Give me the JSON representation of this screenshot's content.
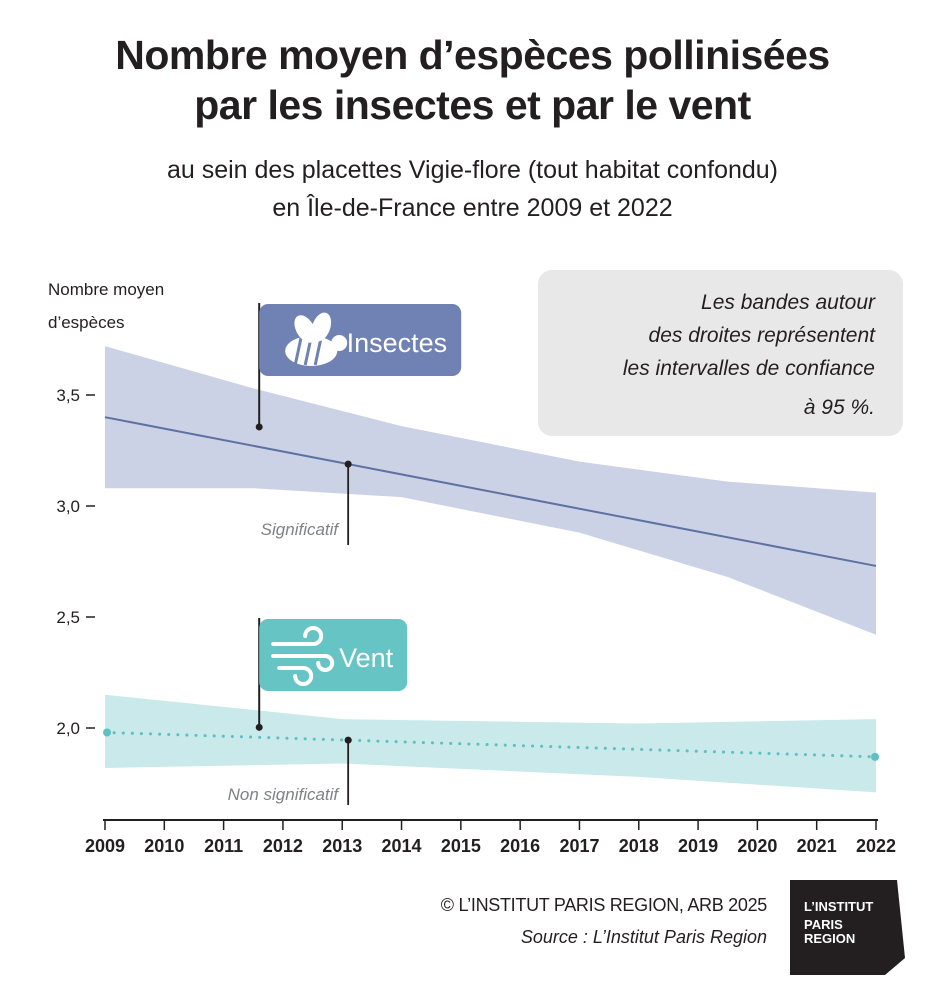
{
  "title": {
    "line1": "Nombre moyen d’espèces pollinisées",
    "line2": "par les insectes et par le vent"
  },
  "subtitle": {
    "line1": "au sein des placettes Vigie-flore (tout habitat confondu)",
    "line2": "en Île-de-France entre 2009 et 2022"
  },
  "note": {
    "line1": "Les bandes autour",
    "line2": "des droites représentent",
    "line3": "les intervalles de confiance",
    "line4": "à 95 %."
  },
  "credits": {
    "copyright": "© L’INSTITUT PARIS REGION, ARB 2025",
    "source": "Source : L’Institut Paris Region"
  },
  "logo": {
    "line1": "L’INSTITUT",
    "line2": "PARIS",
    "line3": "REGION"
  },
  "colors": {
    "insects_band": "#ccd2e5",
    "insects_line": "#5e71a3",
    "insects_flag": "#6f82b3",
    "wind_band": "#c9e9ea",
    "wind_line": "#5fc0c1",
    "wind_flag": "#66c4c5",
    "note_box": "#e8e8e9",
    "logo": "#231f20"
  },
  "chart_data": {
    "type": "line",
    "ylabel": "Nombre moyen d’espèces",
    "ylabel_lines": [
      "Nombre moyen",
      "d’espèces"
    ],
    "xlabel": "",
    "x": [
      2009,
      2010,
      2011,
      2012,
      2013,
      2014,
      2015,
      2016,
      2017,
      2018,
      2019,
      2020,
      2021,
      2022
    ],
    "xlim": [
      2009,
      2022
    ],
    "ylim": [
      1.6,
      3.8
    ],
    "yticks": [
      2.0,
      2.5,
      3.0,
      3.5
    ],
    "ytick_labels": [
      "2,0",
      "2,5",
      "3,0",
      "3,5"
    ],
    "grid": false,
    "series": [
      {
        "name": "Insectes",
        "style": "solid",
        "trend": "Significatif",
        "start": [
          2009,
          3.4
        ],
        "end": [
          2022,
          2.73
        ],
        "band_upper": [
          [
            2009,
            3.72
          ],
          [
            2011.5,
            3.53
          ],
          [
            2014,
            3.36
          ],
          [
            2017,
            3.2
          ],
          [
            2019.5,
            3.11
          ],
          [
            2022,
            3.06
          ]
        ],
        "band_lower": [
          [
            2009,
            3.08
          ],
          [
            2011.5,
            3.08
          ],
          [
            2014,
            3.04
          ],
          [
            2017,
            2.88
          ],
          [
            2019.5,
            2.68
          ],
          [
            2022,
            2.42
          ]
        ],
        "flag_x": 2011.6,
        "callout_x": 2013.1
      },
      {
        "name": "Vent",
        "style": "dotted",
        "trend": "Non significatif",
        "start": [
          2009,
          1.98
        ],
        "end": [
          2022,
          1.87
        ],
        "band_upper": [
          [
            2009,
            2.15
          ],
          [
            2013,
            2.04
          ],
          [
            2018,
            2.02
          ],
          [
            2022,
            2.04
          ]
        ],
        "band_lower": [
          [
            2009,
            1.82
          ],
          [
            2013,
            1.84
          ],
          [
            2018,
            1.78
          ],
          [
            2022,
            1.71
          ]
        ],
        "flag_x": 2011.6,
        "callout_x": 2013.1
      }
    ]
  }
}
